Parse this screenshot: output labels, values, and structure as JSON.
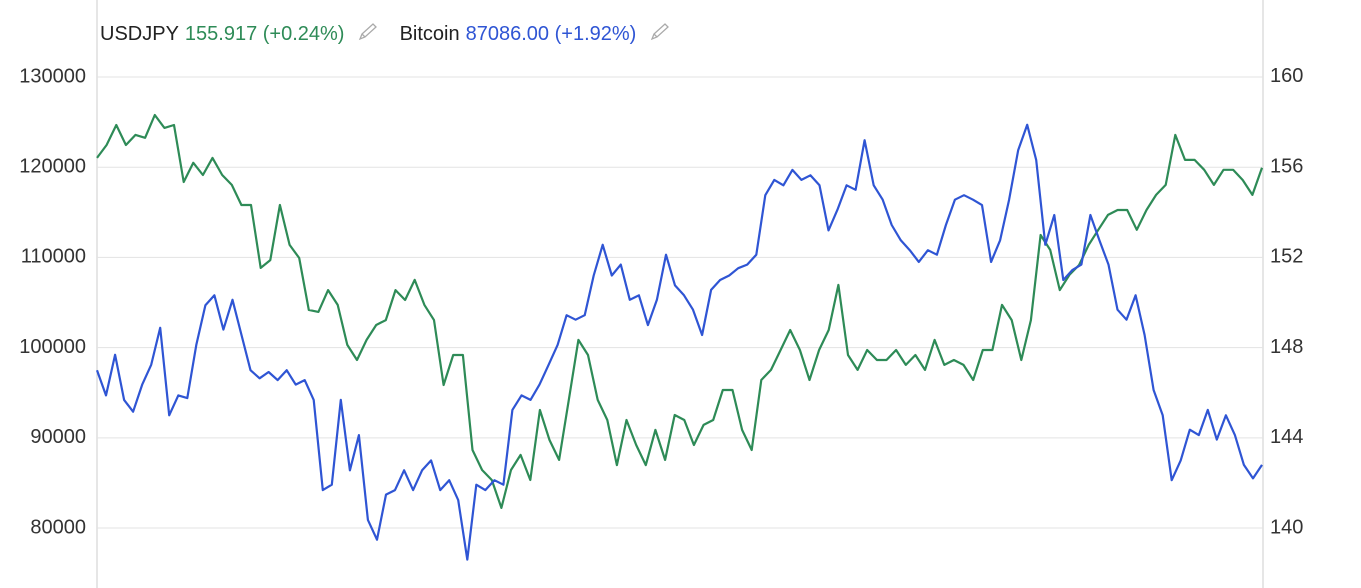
{
  "chart_data": {
    "type": "line",
    "series": [
      {
        "name": "USDJPY",
        "quote": "155.917 (+0.24%)",
        "color": "#2e8b57",
        "axis": "y2",
        "values": [
          156.41,
          156.98,
          157.87,
          156.98,
          157.43,
          157.3,
          158.31,
          157.74,
          157.87,
          155.34,
          156.19,
          155.65,
          156.41,
          155.65,
          155.21,
          154.32,
          154.32,
          151.53,
          151.88,
          154.32,
          152.55,
          151.97,
          149.67,
          149.58,
          150.55,
          149.89,
          148.12,
          147.45,
          148.34,
          149.0,
          149.22,
          150.55,
          150.11,
          151.0,
          149.89,
          149.22,
          146.34,
          147.67,
          147.67,
          143.46,
          142.57,
          142.13,
          140.89,
          142.57,
          143.24,
          142.13,
          145.23,
          143.9,
          143.02,
          145.68,
          148.34,
          147.67,
          145.68,
          144.79,
          142.79,
          144.79,
          143.68,
          142.79,
          144.35,
          143.02,
          145.01,
          144.79,
          143.68,
          144.57,
          144.79,
          146.12,
          146.12,
          144.35,
          143.46,
          146.56,
          147.01,
          147.89,
          148.78,
          147.89,
          146.56,
          147.89,
          148.78,
          150.78,
          147.67,
          147.01,
          147.89,
          147.45,
          147.45,
          147.89,
          147.23,
          147.67,
          147.01,
          148.34,
          147.23,
          147.45,
          147.23,
          146.56,
          147.89,
          147.89,
          149.89,
          149.22,
          147.45,
          149.22,
          152.99,
          152.33,
          150.55,
          151.22,
          151.66,
          152.55,
          153.22,
          153.88,
          154.1,
          154.1,
          153.22,
          154.1,
          154.77,
          155.21,
          157.43,
          156.32,
          156.32,
          155.88,
          155.21,
          155.88,
          155.88,
          155.43,
          154.77,
          155.97
        ]
      },
      {
        "name": "Bitcoin",
        "quote": "87086.00 (+1.92%)",
        "color": "#2f55d4",
        "axis": "y",
        "values": [
          97500,
          94700,
          99200,
          94200,
          92900,
          95900,
          98100,
          102200,
          92500,
          94700,
          94400,
          100300,
          104700,
          105800,
          102000,
          105300,
          101400,
          97500,
          96600,
          97300,
          96400,
          97500,
          95900,
          96400,
          94200,
          84200,
          84800,
          94200,
          86400,
          90300,
          80900,
          78700,
          83700,
          84200,
          86400,
          84200,
          86400,
          87500,
          84200,
          85300,
          83100,
          76500,
          84800,
          84200,
          85300,
          84800,
          93100,
          94700,
          94200,
          95900,
          98100,
          100300,
          103600,
          103100,
          103600,
          108000,
          111400,
          108000,
          109200,
          105300,
          105800,
          102500,
          105300,
          110300,
          106900,
          105800,
          104200,
          101400,
          106400,
          107500,
          108000,
          108800,
          109200,
          110300,
          116900,
          118600,
          118000,
          119700,
          118600,
          119100,
          118000,
          113000,
          115300,
          118000,
          117500,
          123000,
          118000,
          116400,
          113600,
          111900,
          110800,
          109500,
          110800,
          110300,
          113600,
          116400,
          116900,
          116400,
          115800,
          109500,
          111900,
          116400,
          121900,
          124700,
          120800,
          111400,
          114700,
          107500,
          108600,
          109200,
          114700,
          111900,
          109200,
          104200,
          103100,
          105800,
          101400,
          95300,
          92500,
          85300,
          87500,
          90900,
          90300,
          93100,
          89800,
          92500,
          90300,
          87000,
          85500,
          87000
        ]
      }
    ],
    "ylim": [
      73350,
      138540
    ],
    "yticks": [
      80000,
      90000,
      100000,
      110000,
      120000,
      130000
    ],
    "y2lim": [
      137.34,
      163.41
    ],
    "y2ticks": [
      140,
      144,
      148,
      152,
      156,
      160
    ],
    "grid": true
  }
}
